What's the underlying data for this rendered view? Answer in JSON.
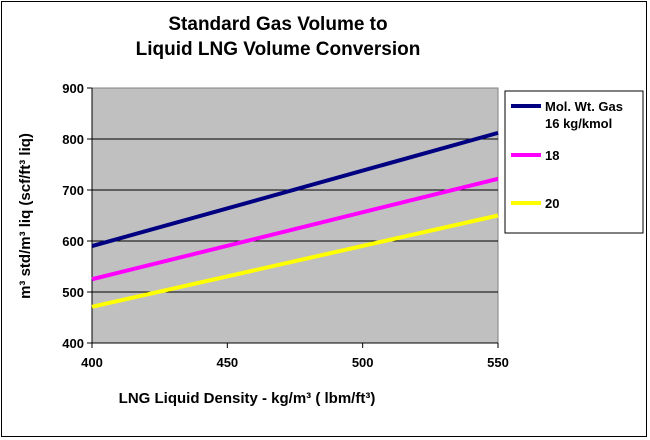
{
  "chart_data": {
    "type": "line",
    "title_lines": [
      "Standard Gas Volume to",
      "Liquid LNG Volume Conversion"
    ],
    "xlabel": "LNG Liquid Density - kg/m³ ( lbm/ft³)",
    "ylabel": "m³ std/m³ liq (scf/ft³ liq)",
    "xlim": [
      400,
      550
    ],
    "ylim": [
      400,
      900
    ],
    "x_ticks": [
      "400",
      "450",
      "500",
      "550"
    ],
    "y_ticks": [
      "400",
      "500",
      "600",
      "700",
      "800",
      "900"
    ],
    "grid": "horizontal",
    "legend_position": "right",
    "plot_background": "#c0c0c0",
    "series": [
      {
        "name_lines": [
          "Mol. Wt. Gas",
          "16 kg/kmol"
        ],
        "color": "#000080",
        "x": [
          400,
          550
        ],
        "y": [
          590,
          812
        ]
      },
      {
        "name_lines": [
          "18"
        ],
        "color": "#ff00ff",
        "x": [
          400,
          550
        ],
        "y": [
          525,
          722
        ]
      },
      {
        "name_lines": [
          "20"
        ],
        "color": "#ffff00",
        "x": [
          400,
          550
        ],
        "y": [
          471,
          650
        ]
      }
    ]
  }
}
